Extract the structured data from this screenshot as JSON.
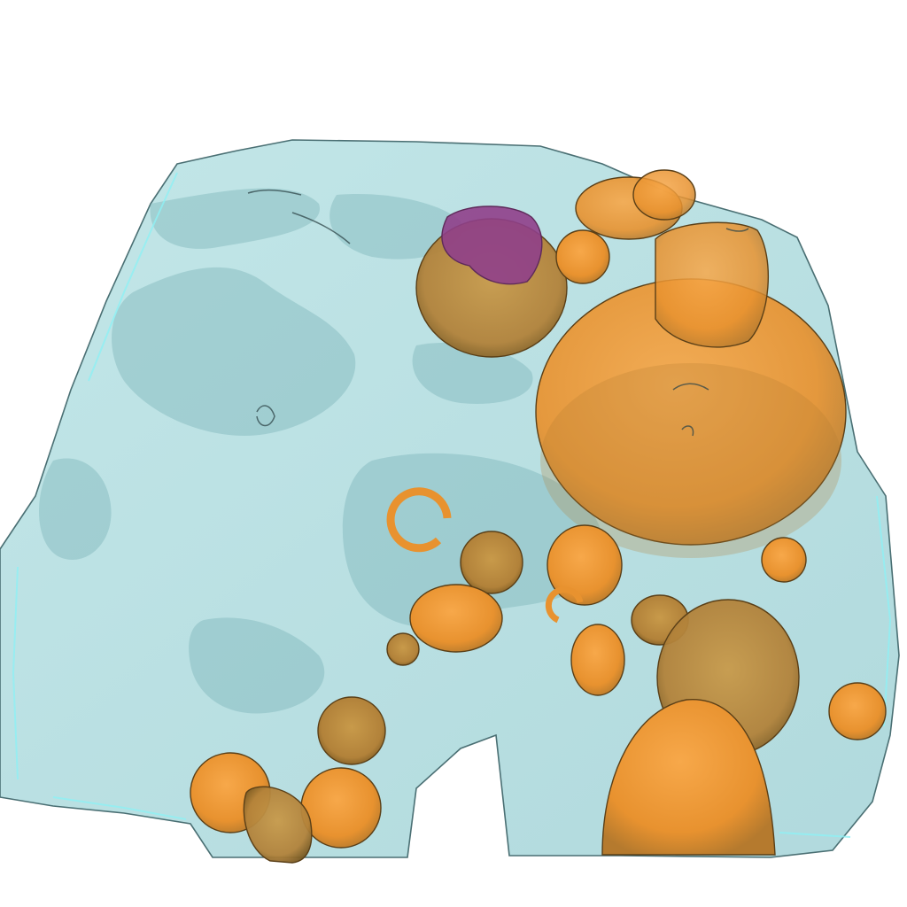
{
  "scene": {
    "background": "#ffffff",
    "colors": {
      "tissue_fill": "#a9d7da",
      "tissue_dark": "#6fa7ad",
      "tissue_edge": "#4a6f73",
      "tissue_highlight": "#8ff0f4",
      "object_fill": "#f09a3a",
      "object_shade": "#b57a2e",
      "object_edge": "#5a3f17",
      "region_fill": "#8f3f8a"
    }
  }
}
